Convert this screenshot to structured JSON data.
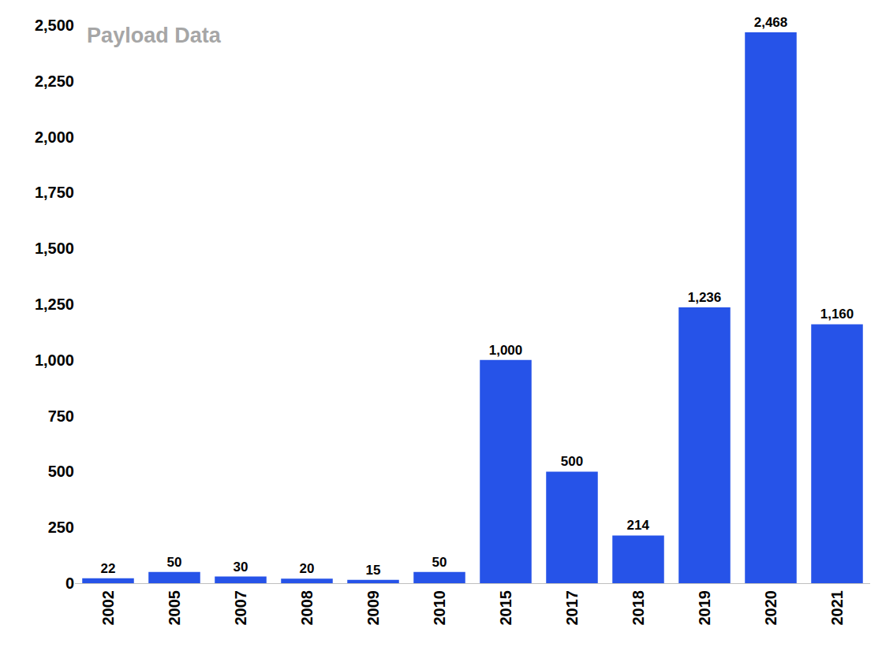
{
  "chart_data": {
    "type": "bar",
    "title": "Payload Data",
    "categories": [
      "2002",
      "2005",
      "2007",
      "2008",
      "2009",
      "2010",
      "2015",
      "2017",
      "2018",
      "2019",
      "2020",
      "2021"
    ],
    "values": [
      22,
      50,
      30,
      20,
      15,
      50,
      1000,
      500,
      214,
      1236,
      2468,
      1160
    ],
    "value_labels": [
      "22",
      "50",
      "30",
      "20",
      "15",
      "50",
      "1,000",
      "500",
      "214",
      "1,236",
      "2,468",
      "1,160"
    ],
    "color": "#2653e8",
    "ylim": [
      0,
      2500
    ],
    "yticks": [
      0,
      250,
      500,
      750,
      {
        "value": 1000,
        "label": "1,000"
      },
      {
        "value": 1250,
        "label": "1,250"
      },
      {
        "value": 1500,
        "label": "1,500"
      },
      {
        "value": 1750,
        "label": "1,750"
      },
      {
        "value": 2000,
        "label": "2,000"
      },
      {
        "value": 2250,
        "label": "2,250"
      },
      {
        "value": 2500,
        "label": "2,500"
      }
    ],
    "grid": false,
    "data_labels": true
  }
}
